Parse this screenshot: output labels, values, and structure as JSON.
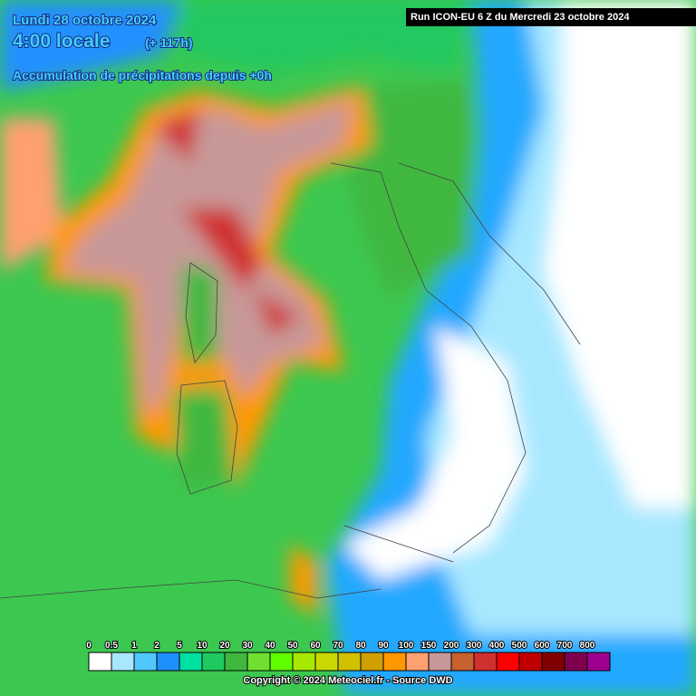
{
  "header": {
    "date": "Lundi 28 octobre 2024",
    "time": "4:00 locale",
    "lead": "(+ 117h)",
    "product": "Accumulation de précipitations depuis +0h",
    "run": "Run ICON-EU 6 Z du Mercredi 23 octobre 2024"
  },
  "legend": {
    "labels": [
      0,
      0.5,
      1,
      2,
      5,
      10,
      20,
      30,
      40,
      50,
      60,
      70,
      80,
      90,
      100,
      150,
      200,
      300,
      400,
      500,
      600,
      700,
      800
    ],
    "colors": [
      "#ffffff",
      "#a8e8ff",
      "#50c8ff",
      "#1e90ff",
      "#00e0a0",
      "#20c860",
      "#40b840",
      "#70e030",
      "#60ff00",
      "#a8e800",
      "#c8d800",
      "#d0c000",
      "#d0a000",
      "#ff9800",
      "#ffa070",
      "#c89898",
      "#c86030",
      "#d03030",
      "#ff0000",
      "#c00000",
      "#800000",
      "#800050",
      "#a00090"
    ]
  },
  "footer": {
    "copyright": "Copyright © 2024 Meteociel.fr - Source DWD"
  }
}
